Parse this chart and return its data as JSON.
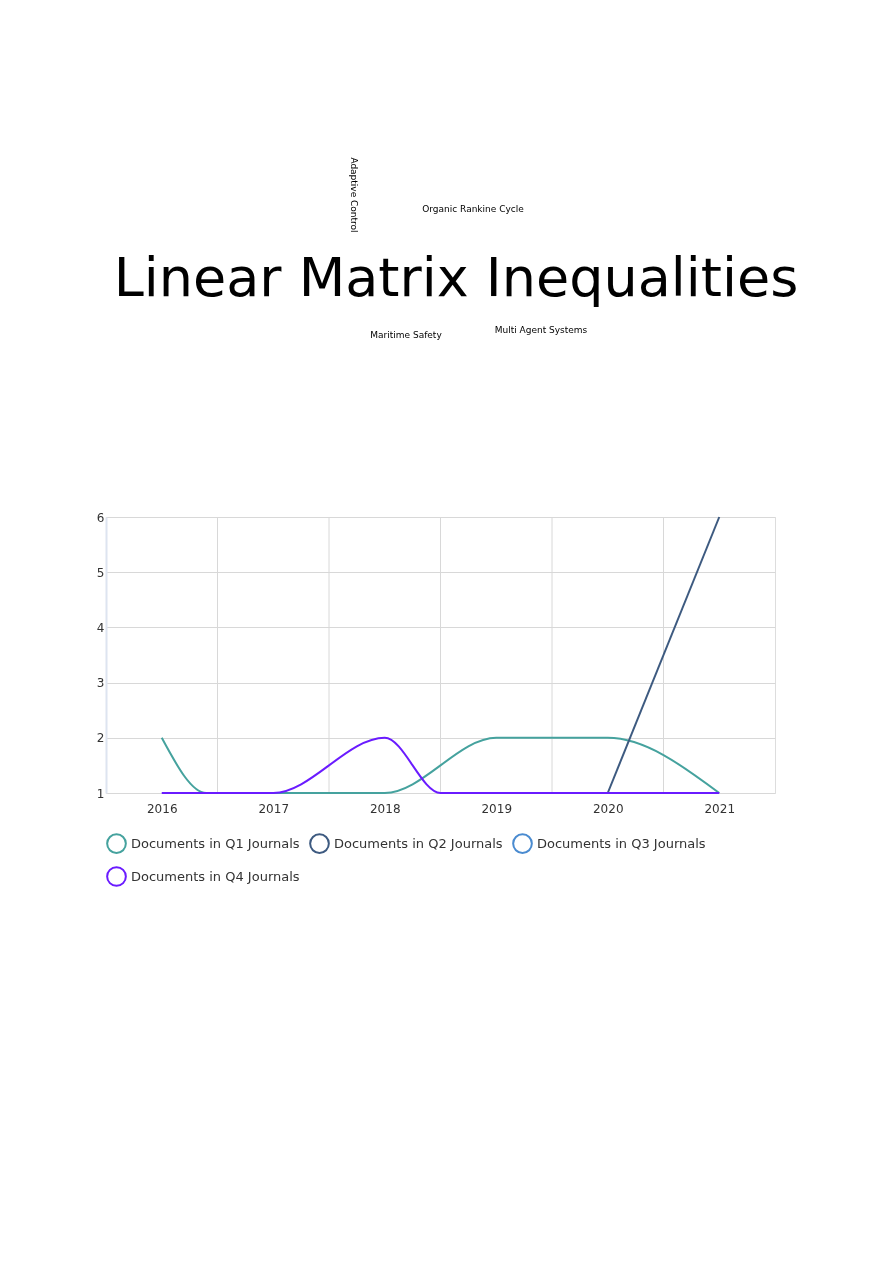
{
  "chart_data": {
    "type": "line",
    "title": "Linear Matrix Inequalities",
    "annotations": [
      "Adaptive Control",
      "Organic Rankine Cycle",
      "Maritime Safety",
      "Multi Agent Systems"
    ],
    "series": [
      {
        "name": "Documents in Q1 Journals",
        "color": "#45a29e",
        "x": [
          2016,
          2016.4,
          2018,
          2019,
          2020,
          2021
        ],
        "values": [
          2,
          1,
          1,
          2,
          2,
          1
        ]
      },
      {
        "name": "Documents in Q2 Journals",
        "color": "#3d5a80",
        "x": [
          2020,
          2021
        ],
        "values": [
          1,
          6
        ]
      },
      {
        "name": "Documents in Q3 Journals",
        "color": "#4a8bd0"
      },
      {
        "name": "Documents in Q4 Journals",
        "color": "#6a1bff",
        "x": [
          2016,
          2017,
          2018,
          2018.5,
          2021
        ],
        "values": [
          1,
          1,
          2,
          1,
          1
        ]
      }
    ],
    "xlim": [
      2015.5,
      2021.5
    ],
    "xticks": [
      2016,
      2017,
      2018,
      2019,
      2020,
      2021,
      {
        "value": 2016.5,
        "label": null
      },
      {
        "value": 2017.5,
        "label": null
      },
      {
        "value": 2018.5,
        "label": null
      },
      {
        "value": 2019.5,
        "label": null
      },
      {
        "value": 2020.5,
        "label": null
      }
    ],
    "ylim": [
      1,
      6
    ],
    "yticks": [
      1,
      2,
      3,
      4,
      5,
      6
    ],
    "grid": true,
    "legend": "bottom",
    "marker": "none",
    "line_style": "solid"
  }
}
